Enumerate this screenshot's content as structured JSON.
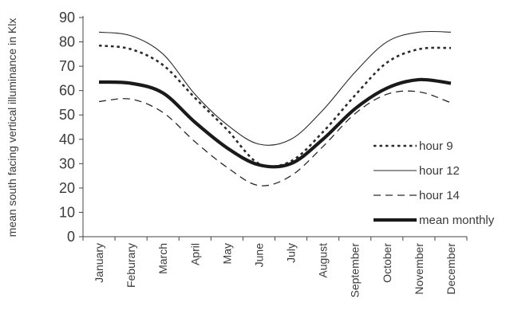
{
  "chart_data": {
    "type": "line",
    "title": "",
    "xlabel": "",
    "ylabel": "mean south facing vertical illuminance in Klx",
    "ylim": [
      0,
      90
    ],
    "yticks": [
      0,
      10,
      20,
      30,
      40,
      50,
      60,
      70,
      80,
      90
    ],
    "grid": false,
    "legend_position": "right",
    "categories": [
      "January",
      "Feburary",
      "March",
      "April",
      "May",
      "June",
      "July",
      "August",
      "September",
      "October",
      "November",
      "December"
    ],
    "series": [
      {
        "name": "hour 9",
        "style": "dotted",
        "color": "#2a2a2a",
        "values": [
          78.5,
          77,
          70.5,
          57,
          44,
          30,
          31,
          43,
          58,
          71.5,
          77,
          77.5
        ]
      },
      {
        "name": "hour 12",
        "style": "thin-solid",
        "color": "#2a2a2a",
        "values": [
          84,
          82.5,
          75,
          58.5,
          46,
          38,
          40,
          52,
          67.5,
          80,
          84,
          84
        ]
      },
      {
        "name": "hour 14",
        "style": "dashed",
        "color": "#2a2a2a",
        "values": [
          55.5,
          56.5,
          51,
          39,
          28.5,
          21,
          25,
          37,
          50.5,
          58.5,
          59.5,
          55
        ]
      },
      {
        "name": "mean monthly",
        "style": "thick-solid",
        "color": "#1a1a1a",
        "values": [
          63.5,
          63,
          59,
          47,
          36.5,
          29.5,
          30,
          40,
          52.5,
          61,
          64.5,
          63
        ]
      }
    ]
  }
}
